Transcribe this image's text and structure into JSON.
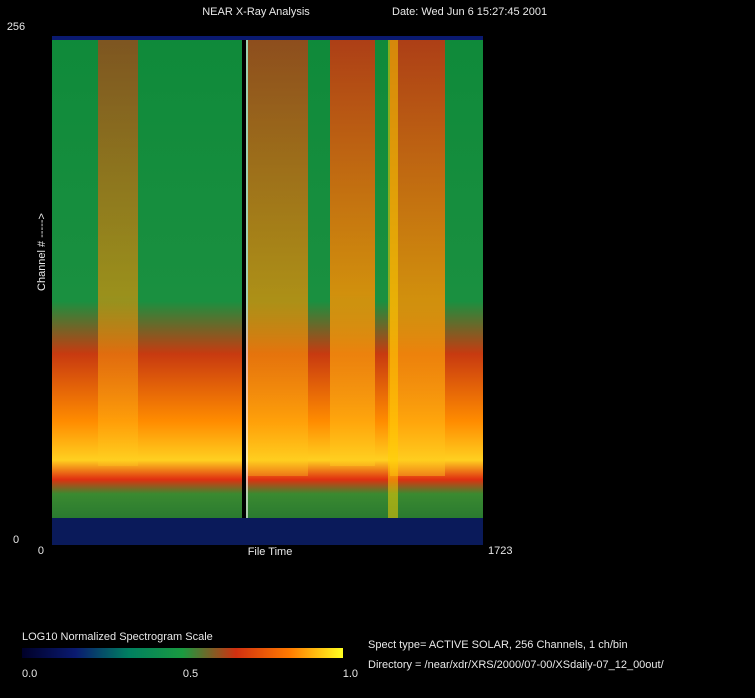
{
  "chart_data": {
    "type": "heatmap",
    "title": "NEAR X-Ray Analysis",
    "subtitle": "Date: Wed Jun  6 15:27:45 2001",
    "xlabel": "File Time",
    "ylabel": "Channel # ----->",
    "xlim": [
      0,
      1723
    ],
    "xticks": [
      0,
      1723
    ],
    "ylim": [
      0,
      256
    ],
    "yticks": [
      0,
      256
    ],
    "colorbar": {
      "label": "LOG10 Normalized Spectrogram Scale",
      "lim": [
        0,
        1
      ],
      "ticks": [
        {
          "value": 0,
          "label": "0.0"
        },
        {
          "value": 0.5,
          "label": "0.5"
        },
        {
          "value": 1,
          "label": "1.0"
        }
      ],
      "colors": [
        "#000028",
        "#0a1a70",
        "#008060",
        "#1a9a40",
        "#d03010",
        "#ff7a00",
        "#ffff20"
      ]
    },
    "info": [
      "Spect type= ACTIVE SOLAR,  256 Channels,        1 ch/bin",
      "Directory = /near/xdr/XRS/2000/07-00/XSdaily-07_12_00out/"
    ]
  }
}
